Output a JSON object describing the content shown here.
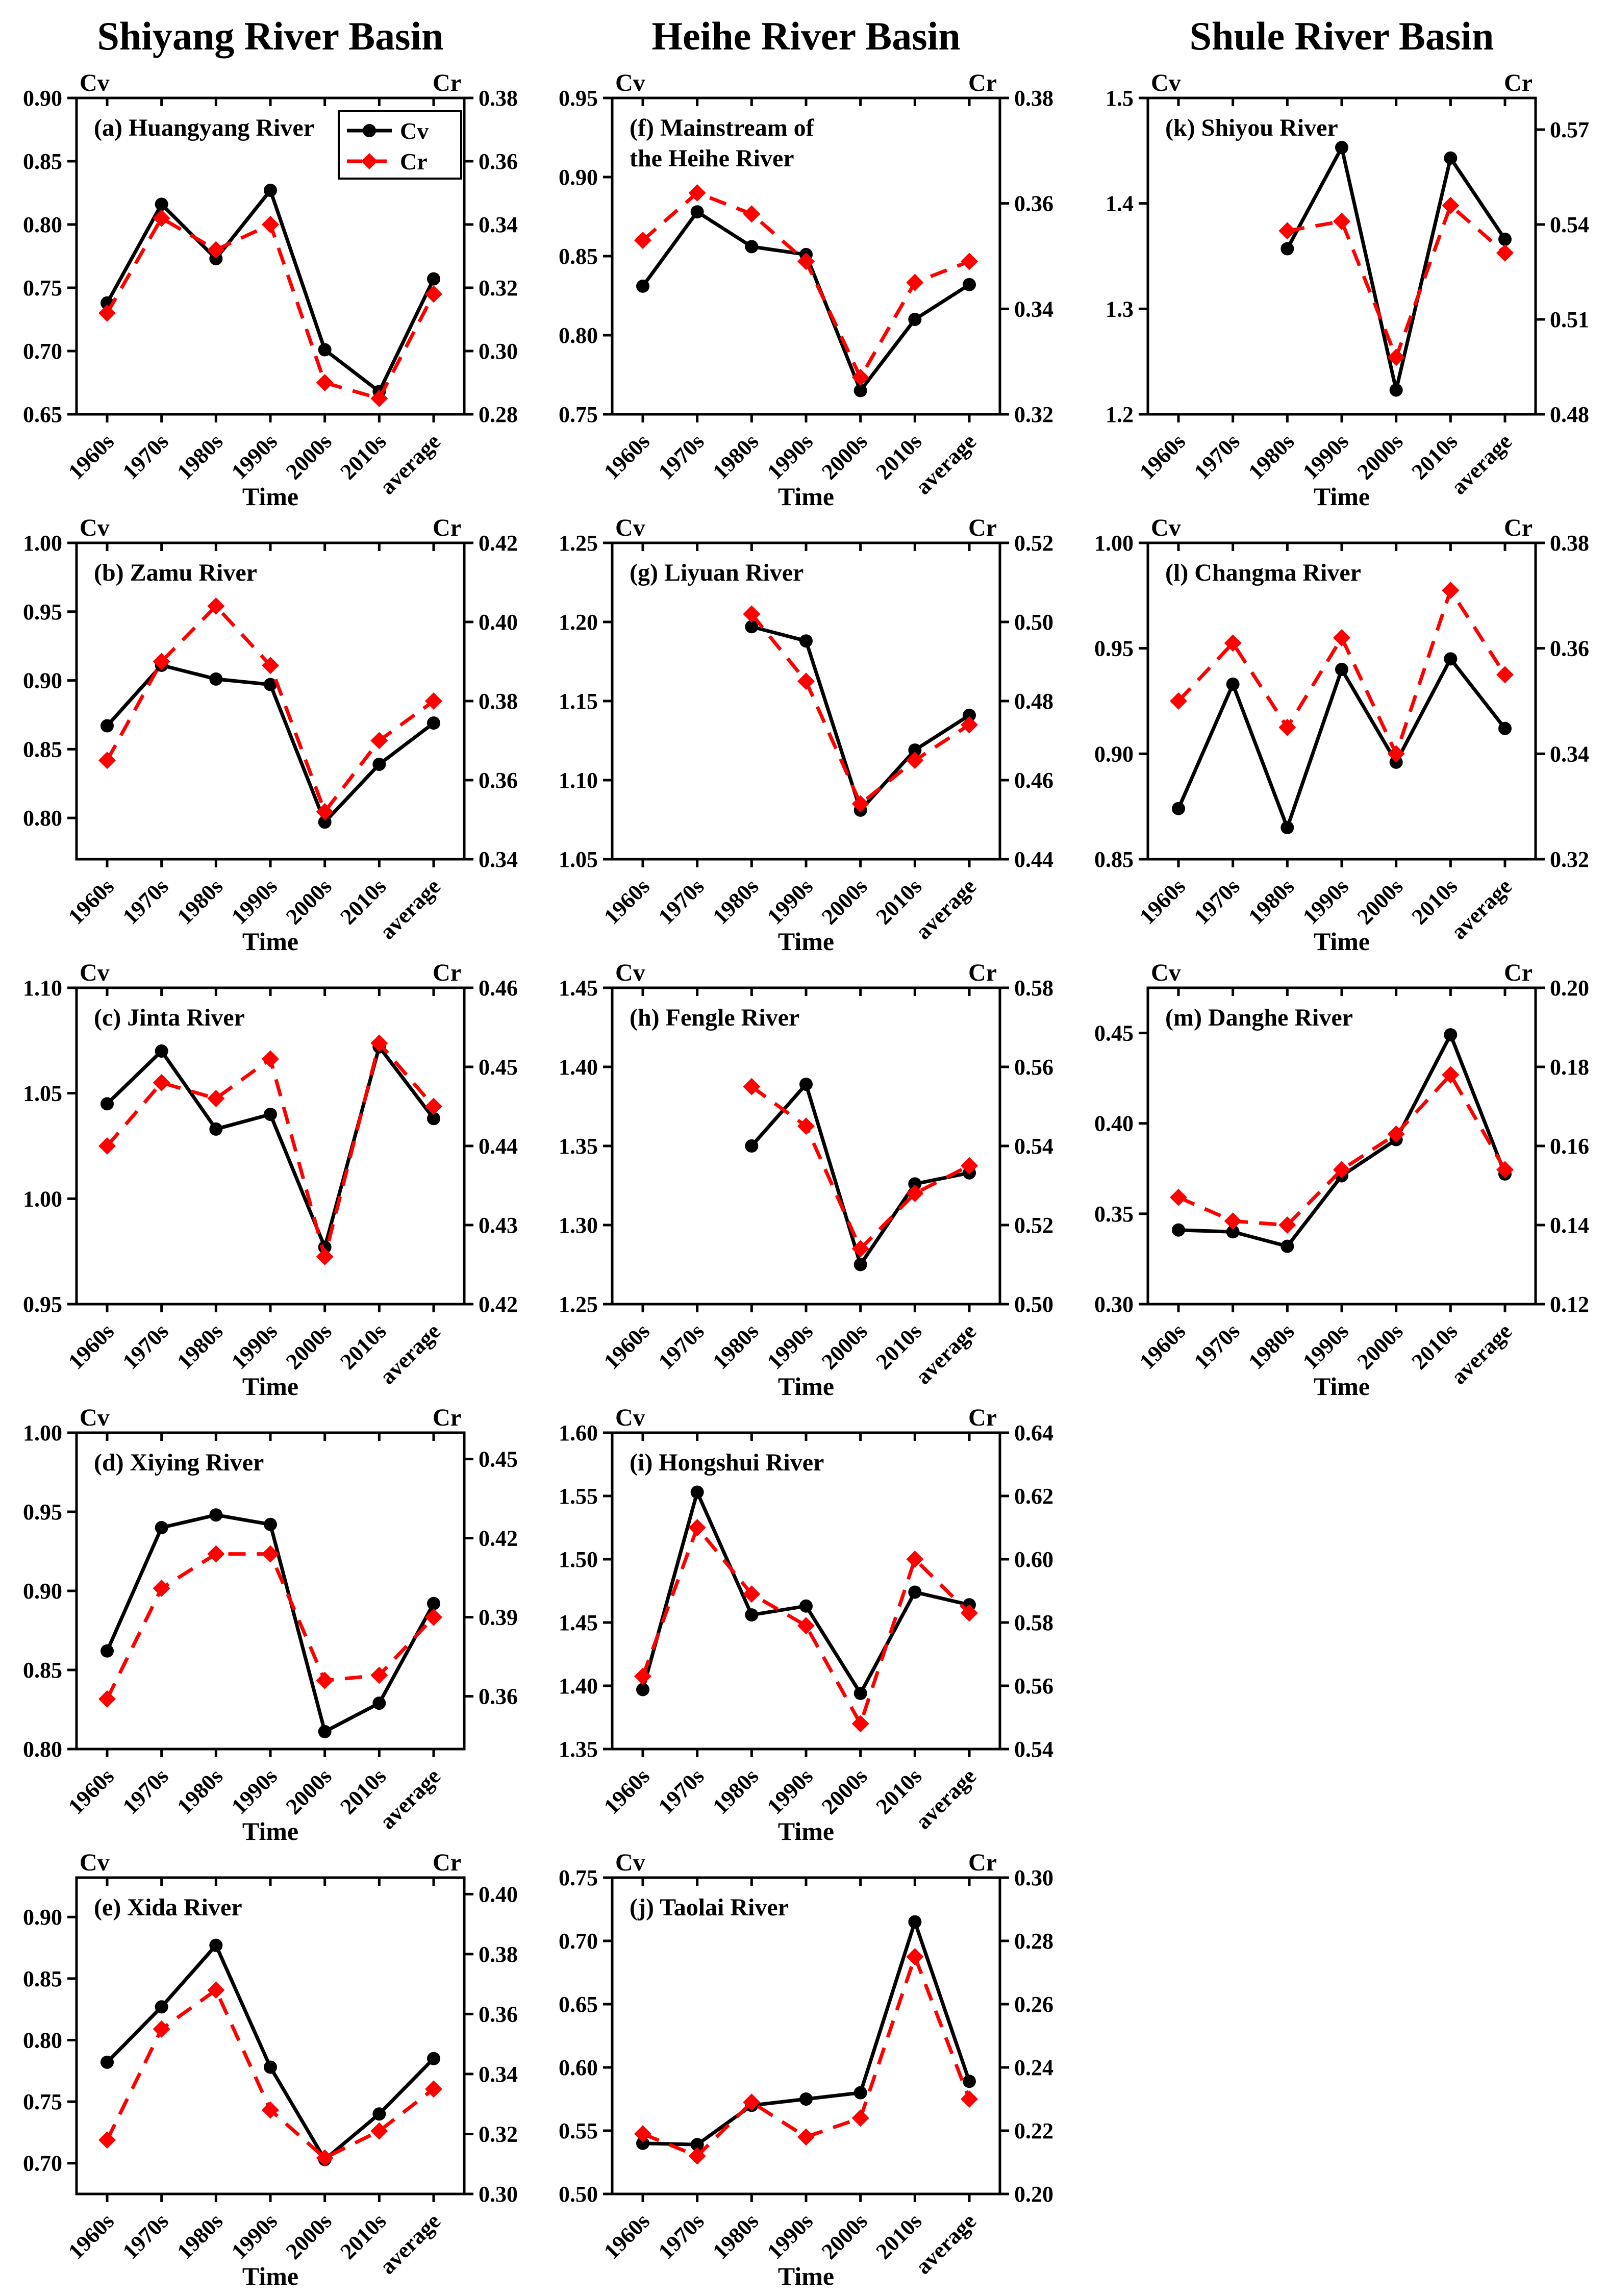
{
  "basin_headers": [
    "Shiyang River Basin",
    "Heihe River Basin",
    "Shule River Basin"
  ],
  "axis": {
    "left_label": "Cv",
    "right_label": "Cr",
    "x_label": "Time"
  },
  "legend": {
    "entries": [
      "Cv",
      "Cr"
    ],
    "position": "top-right",
    "shown_in_panel": "a"
  },
  "colors": {
    "cv": "#000000",
    "cr": "#ff0000"
  },
  "categories": [
    "1960s",
    "1970s",
    "1980s",
    "1990s",
    "2000s",
    "2010s",
    "average"
  ],
  "chart_data": [
    {
      "type": "line",
      "key": "a",
      "col": 0,
      "row": 0,
      "title": [
        "(a) Huangyang River"
      ],
      "legend": true,
      "xlabel": "Time",
      "left_axis": {
        "label": "Cv",
        "lim": [
          0.65,
          0.9
        ],
        "ticks": [
          0.65,
          0.7,
          0.75,
          0.8,
          0.85,
          0.9
        ],
        "decimals": 2
      },
      "right_axis": {
        "label": "Cr",
        "lim": [
          0.28,
          0.38
        ],
        "ticks": [
          0.28,
          0.3,
          0.32,
          0.34,
          0.36,
          0.38
        ],
        "decimals": 2
      },
      "series": [
        {
          "name": "Cv",
          "axis": "left",
          "values": [
            0.738,
            0.816,
            0.773,
            0.827,
            0.701,
            0.668,
            0.757
          ]
        },
        {
          "name": "Cr",
          "axis": "right",
          "values": [
            0.312,
            0.342,
            0.332,
            0.34,
            0.29,
            0.285,
            0.318
          ]
        }
      ]
    },
    {
      "type": "line",
      "key": "b",
      "col": 0,
      "row": 1,
      "title": [
        "(b) Zamu River"
      ],
      "legend": false,
      "xlabel": "Time",
      "left_axis": {
        "label": "Cv",
        "lim": [
          0.77,
          1.0
        ],
        "ticks": [
          0.8,
          0.85,
          0.9,
          0.95,
          1.0
        ],
        "decimals": 2
      },
      "right_axis": {
        "label": "Cr",
        "lim": [
          0.34,
          0.42
        ],
        "ticks": [
          0.34,
          0.36,
          0.38,
          0.4,
          0.42
        ],
        "decimals": 2
      },
      "series": [
        {
          "name": "Cv",
          "axis": "left",
          "values": [
            0.867,
            0.911,
            0.901,
            0.897,
            0.797,
            0.839,
            0.869
          ]
        },
        {
          "name": "Cr",
          "axis": "right",
          "values": [
            0.365,
            0.39,
            0.404,
            0.389,
            0.352,
            0.37,
            0.38
          ]
        }
      ]
    },
    {
      "type": "line",
      "key": "c",
      "col": 0,
      "row": 2,
      "title": [
        "(c) Jinta River"
      ],
      "legend": false,
      "xlabel": "Time",
      "left_axis": {
        "label": "Cv",
        "lim": [
          0.95,
          1.1
        ],
        "ticks": [
          0.95,
          1.0,
          1.05,
          1.1
        ],
        "decimals": 2
      },
      "right_axis": {
        "label": "Cr",
        "lim": [
          0.42,
          0.46
        ],
        "ticks": [
          0.42,
          0.43,
          0.44,
          0.45,
          0.46
        ],
        "decimals": 2
      },
      "series": [
        {
          "name": "Cv",
          "axis": "left",
          "values": [
            1.045,
            1.07,
            1.033,
            1.04,
            0.977,
            1.072,
            1.038
          ]
        },
        {
          "name": "Cr",
          "axis": "right",
          "values": [
            0.44,
            0.448,
            0.446,
            0.451,
            0.426,
            0.453,
            0.445
          ]
        }
      ]
    },
    {
      "type": "line",
      "key": "d",
      "col": 0,
      "row": 3,
      "title": [
        "(d) Xiying River"
      ],
      "legend": false,
      "xlabel": "Time",
      "left_axis": {
        "label": "Cv",
        "lim": [
          0.8,
          1.0
        ],
        "ticks": [
          0.8,
          0.85,
          0.9,
          0.95,
          1.0
        ],
        "decimals": 2
      },
      "right_axis": {
        "label": "Cr",
        "lim": [
          0.34,
          0.46
        ],
        "ticks": [
          0.36,
          0.39,
          0.42,
          0.45
        ],
        "decimals": 2
      },
      "series": [
        {
          "name": "Cv",
          "axis": "left",
          "values": [
            0.862,
            0.94,
            0.948,
            0.942,
            0.811,
            0.829,
            0.892
          ]
        },
        {
          "name": "Cr",
          "axis": "right",
          "values": [
            0.359,
            0.401,
            0.414,
            0.414,
            0.366,
            0.368,
            0.39
          ]
        }
      ]
    },
    {
      "type": "line",
      "key": "e",
      "col": 0,
      "row": 4,
      "title": [
        "(e) Xida River"
      ],
      "legend": false,
      "xlabel": "Time",
      "left_axis": {
        "label": "Cv",
        "lim": [
          0.675,
          0.932
        ],
        "ticks": [
          0.7,
          0.75,
          0.8,
          0.85,
          0.9
        ],
        "decimals": 2
      },
      "right_axis": {
        "label": "Cr",
        "lim": [
          0.3,
          0.4055
        ],
        "ticks": [
          0.3,
          0.32,
          0.34,
          0.36,
          0.38,
          0.4
        ],
        "decimals": 2
      },
      "series": [
        {
          "name": "Cv",
          "axis": "left",
          "values": [
            0.782,
            0.827,
            0.877,
            0.778,
            0.703,
            0.74,
            0.785
          ]
        },
        {
          "name": "Cr",
          "axis": "right",
          "values": [
            0.318,
            0.355,
            0.368,
            0.328,
            0.312,
            0.321,
            0.335
          ]
        }
      ]
    },
    {
      "type": "line",
      "key": "f",
      "col": 1,
      "row": 0,
      "title": [
        "(f) Mainstream of",
        "the Heihe River"
      ],
      "legend": false,
      "xlabel": "Time",
      "left_axis": {
        "label": "Cv",
        "lim": [
          0.75,
          0.95
        ],
        "ticks": [
          0.75,
          0.8,
          0.85,
          0.9,
          0.95
        ],
        "decimals": 2
      },
      "right_axis": {
        "label": "Cr",
        "lim": [
          0.32,
          0.38
        ],
        "ticks": [
          0.32,
          0.34,
          0.36,
          0.38
        ],
        "decimals": 2
      },
      "series": [
        {
          "name": "Cv",
          "axis": "left",
          "values": [
            0.831,
            0.878,
            0.856,
            0.851,
            0.765,
            0.81,
            0.832
          ]
        },
        {
          "name": "Cr",
          "axis": "right",
          "values": [
            0.353,
            0.362,
            0.358,
            0.349,
            0.327,
            0.345,
            0.349
          ]
        }
      ]
    },
    {
      "type": "line",
      "key": "g",
      "col": 1,
      "row": 1,
      "title": [
        "(g) Liyuan River"
      ],
      "legend": false,
      "xlabel": "Time",
      "left_axis": {
        "label": "Cv",
        "lim": [
          1.05,
          1.25
        ],
        "ticks": [
          1.05,
          1.1,
          1.15,
          1.2,
          1.25
        ],
        "decimals": 2
      },
      "right_axis": {
        "label": "Cr",
        "lim": [
          0.44,
          0.52
        ],
        "ticks": [
          0.44,
          0.46,
          0.48,
          0.5,
          0.52
        ],
        "decimals": 2
      },
      "series": [
        {
          "name": "Cv",
          "axis": "left",
          "values": [
            null,
            null,
            1.197,
            1.188,
            1.081,
            1.119,
            1.141
          ]
        },
        {
          "name": "Cr",
          "axis": "right",
          "values": [
            null,
            null,
            0.502,
            0.485,
            0.454,
            0.465,
            0.474
          ]
        }
      ]
    },
    {
      "type": "line",
      "key": "h",
      "col": 1,
      "row": 2,
      "title": [
        "(h) Fengle River"
      ],
      "legend": false,
      "xlabel": "Time",
      "left_axis": {
        "label": "Cv",
        "lim": [
          1.25,
          1.45
        ],
        "ticks": [
          1.25,
          1.3,
          1.35,
          1.4,
          1.45
        ],
        "decimals": 2
      },
      "right_axis": {
        "label": "Cr",
        "lim": [
          0.5,
          0.58
        ],
        "ticks": [
          0.5,
          0.52,
          0.54,
          0.56,
          0.58
        ],
        "decimals": 2
      },
      "series": [
        {
          "name": "Cv",
          "axis": "left",
          "values": [
            null,
            null,
            1.35,
            1.389,
            1.275,
            1.326,
            1.333
          ]
        },
        {
          "name": "Cr",
          "axis": "right",
          "values": [
            null,
            null,
            0.555,
            0.545,
            0.514,
            0.528,
            0.535
          ]
        }
      ]
    },
    {
      "type": "line",
      "key": "i",
      "col": 1,
      "row": 3,
      "title": [
        "(i) Hongshui River"
      ],
      "legend": false,
      "xlabel": "Time",
      "left_axis": {
        "label": "Cv",
        "lim": [
          1.35,
          1.6
        ],
        "ticks": [
          1.35,
          1.4,
          1.45,
          1.5,
          1.55,
          1.6
        ],
        "decimals": 2
      },
      "right_axis": {
        "label": "Cr",
        "lim": [
          0.54,
          0.64
        ],
        "ticks": [
          0.54,
          0.56,
          0.58,
          0.6,
          0.62,
          0.64
        ],
        "decimals": 2
      },
      "series": [
        {
          "name": "Cv",
          "axis": "left",
          "values": [
            1.397,
            1.553,
            1.456,
            1.463,
            1.394,
            1.474,
            1.464
          ]
        },
        {
          "name": "Cr",
          "axis": "right",
          "values": [
            0.563,
            0.61,
            0.589,
            0.579,
            0.548,
            0.6,
            0.583
          ]
        }
      ]
    },
    {
      "type": "line",
      "key": "j",
      "col": 1,
      "row": 4,
      "title": [
        "(j) Taolai River"
      ],
      "legend": false,
      "xlabel": "Time",
      "left_axis": {
        "label": "Cv",
        "lim": [
          0.5,
          0.75
        ],
        "ticks": [
          0.5,
          0.55,
          0.6,
          0.65,
          0.7,
          0.75
        ],
        "decimals": 2
      },
      "right_axis": {
        "label": "Cr",
        "lim": [
          0.2,
          0.3
        ],
        "ticks": [
          0.2,
          0.22,
          0.24,
          0.26,
          0.28,
          0.3
        ],
        "decimals": 2
      },
      "series": [
        {
          "name": "Cv",
          "axis": "left",
          "values": [
            0.54,
            0.539,
            0.57,
            0.575,
            0.58,
            0.715,
            0.589
          ]
        },
        {
          "name": "Cr",
          "axis": "right",
          "values": [
            0.219,
            0.212,
            0.229,
            0.218,
            0.224,
            0.275,
            0.23
          ]
        }
      ]
    },
    {
      "type": "line",
      "key": "k",
      "col": 2,
      "row": 0,
      "title": [
        "(k) Shiyou River"
      ],
      "legend": false,
      "xlabel": "Time",
      "left_axis": {
        "label": "Cv",
        "lim": [
          1.2,
          1.5
        ],
        "ticks": [
          1.2,
          1.3,
          1.4,
          1.5
        ],
        "decimals": 1
      },
      "right_axis": {
        "label": "Cr",
        "lim": [
          0.48,
          0.58
        ],
        "ticks": [
          0.48,
          0.51,
          0.54,
          0.57
        ],
        "decimals": 2
      },
      "series": [
        {
          "name": "Cv",
          "axis": "left",
          "values": [
            null,
            null,
            1.357,
            1.453,
            1.223,
            1.443,
            1.366
          ]
        },
        {
          "name": "Cr",
          "axis": "right",
          "values": [
            null,
            null,
            0.538,
            0.541,
            0.498,
            0.546,
            0.531
          ]
        }
      ]
    },
    {
      "type": "line",
      "key": "l",
      "col": 2,
      "row": 1,
      "title": [
        "(l) Changma River"
      ],
      "legend": false,
      "xlabel": "Time",
      "left_axis": {
        "label": "Cv",
        "lim": [
          0.85,
          1.0
        ],
        "ticks": [
          0.85,
          0.9,
          0.95,
          1.0
        ],
        "decimals": 2
      },
      "right_axis": {
        "label": "Cr",
        "lim": [
          0.32,
          0.38
        ],
        "ticks": [
          0.32,
          0.34,
          0.36,
          0.38
        ],
        "decimals": 2
      },
      "series": [
        {
          "name": "Cv",
          "axis": "left",
          "values": [
            0.874,
            0.933,
            0.865,
            0.94,
            0.896,
            0.945,
            0.912
          ]
        },
        {
          "name": "Cr",
          "axis": "right",
          "values": [
            0.35,
            0.361,
            0.345,
            0.362,
            0.34,
            0.371,
            0.355
          ]
        }
      ]
    },
    {
      "type": "line",
      "key": "m",
      "col": 2,
      "row": 2,
      "title": [
        "(m) Danghe River"
      ],
      "legend": false,
      "xlabel": "Time",
      "left_axis": {
        "label": "Cv",
        "lim": [
          0.3,
          0.475
        ],
        "ticks": [
          0.3,
          0.35,
          0.4,
          0.45
        ],
        "decimals": 2
      },
      "right_axis": {
        "label": "Cr",
        "lim": [
          0.12,
          0.2
        ],
        "ticks": [
          0.12,
          0.14,
          0.16,
          0.18,
          0.2
        ],
        "decimals": 2
      },
      "series": [
        {
          "name": "Cv",
          "axis": "left",
          "values": [
            0.341,
            0.34,
            0.332,
            0.371,
            0.391,
            0.449,
            0.372
          ]
        },
        {
          "name": "Cr",
          "axis": "right",
          "values": [
            0.147,
            0.141,
            0.14,
            0.154,
            0.163,
            0.178,
            0.154
          ]
        }
      ]
    }
  ]
}
